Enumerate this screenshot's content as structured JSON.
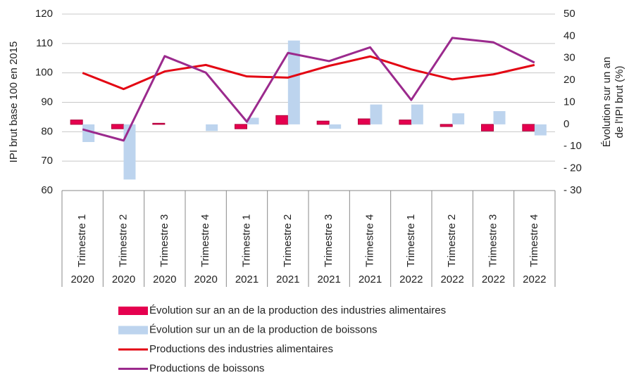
{
  "chart_data": {
    "type": "bar-line",
    "ylabel": "IPI brut base 100 en 2015",
    "y2label": [
      "Évolution sur un an",
      "de l'IPI brut (%)"
    ],
    "categories": [
      "Trimestre 1",
      "Trimestre 2",
      "Trimestre 3",
      "Trimestre 4",
      "Trimestre 1",
      "Trimestre 2",
      "Trimestre 3",
      "Trimestre 4",
      "Trimestre 1",
      "Trimestre 2",
      "Trimestre 3",
      "Trimestre 4"
    ],
    "years": [
      "2020",
      "2020",
      "2020",
      "2020",
      "2021",
      "2021",
      "2021",
      "2021",
      "2022",
      "2022",
      "2022",
      "2022"
    ],
    "ylim": [
      60,
      120
    ],
    "yticks": [
      60,
      70,
      80,
      90,
      100,
      110,
      120
    ],
    "y2lim": [
      -30,
      50
    ],
    "y2ticks": [
      {
        "value": -30,
        "label": "- 30"
      },
      {
        "value": -20,
        "label": "- 20"
      },
      {
        "value": -10,
        "label": "- 10"
      },
      0,
      10,
      20,
      30,
      40,
      50
    ],
    "grid": true,
    "series": [
      {
        "name": "Évolution sur an an de la production des industries alimentaires",
        "type": "bar",
        "axis": "y2",
        "color": "#e5004f",
        "values": [
          2,
          -2,
          0.5,
          0,
          -2,
          4,
          1.5,
          2.5,
          2,
          -1,
          -3,
          -3
        ]
      },
      {
        "name": "Évolution sur un an de la production de boissons",
        "type": "bar",
        "axis": "y2",
        "color": "#bdd4ee",
        "values": [
          -8,
          -25,
          0,
          -3,
          3,
          38,
          -2,
          9,
          9,
          5,
          6,
          -5
        ]
      },
      {
        "name": "Productions des industries alimentaires",
        "type": "line",
        "color": "#e30613",
        "values": [
          100,
          94.5,
          100.5,
          102.7,
          98.8,
          98.4,
          102.4,
          105.6,
          101.2,
          97.8,
          99.5,
          102.7
        ]
      },
      {
        "name": "Productions de boissons",
        "type": "line",
        "color": "#9b2a8d",
        "values": [
          80.8,
          77,
          105.7,
          100.1,
          83.4,
          106.8,
          104,
          108.7,
          90.8,
          111.9,
          110.4,
          103.5
        ]
      }
    ]
  }
}
